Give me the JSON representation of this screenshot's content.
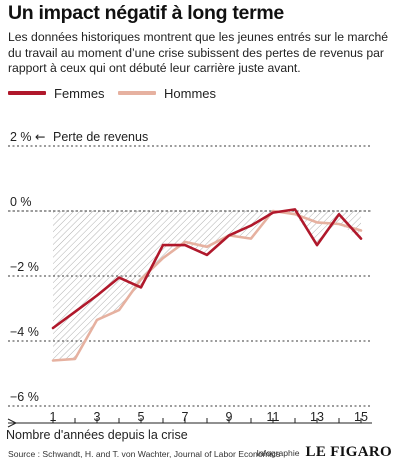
{
  "chart_data": {
    "type": "line",
    "title": "Un impact négatif à long terme",
    "subtitle": "Les données historiques montrent que les jeunes entrés sur le marché du travail au moment d’une crise subissent des pertes de revenus par rapport à ceux qui ont débuté leur carrière juste avant.",
    "xlabel": "Nombre d'années depuis la crise",
    "ylabel": "Perte de revenus",
    "ylabel_arrow": "←",
    "x": [
      1,
      2,
      3,
      4,
      5,
      6,
      7,
      8,
      9,
      10,
      11,
      12,
      13,
      14,
      15
    ],
    "x_ticks": [
      1,
      3,
      5,
      7,
      9,
      11,
      13,
      15
    ],
    "xlim": [
      0.5,
      15.5
    ],
    "ylim": [
      -6.4,
      2.4
    ],
    "y_ticks": [
      {
        "value": 2,
        "label": "2 %"
      },
      {
        "value": 0,
        "label": "0 %"
      },
      {
        "value": -2,
        "label": "−2 %"
      },
      {
        "value": -4,
        "label": "−4 %"
      },
      {
        "value": -6,
        "label": "−6 %"
      }
    ],
    "series": [
      {
        "name": "Femmes",
        "color": "#b0182b",
        "values": [
          -3.6,
          -3.1,
          -2.6,
          -2.05,
          -2.35,
          -1.05,
          -1.05,
          -1.35,
          -0.75,
          -0.45,
          -0.05,
          0.05,
          -1.05,
          -0.1,
          -0.85
        ]
      },
      {
        "name": "Hommes",
        "color": "#e6b1a0",
        "values": [
          -4.6,
          -4.55,
          -3.35,
          -3.05,
          -2.1,
          -1.45,
          -0.95,
          -1.1,
          -0.75,
          -0.85,
          0.0,
          -0.1,
          -0.35,
          -0.4,
          -0.6
        ]
      }
    ],
    "grid": false,
    "shaded_area": "hatched",
    "legend_position": "top-left"
  },
  "footer": {
    "source": "Source : Schwandt, H. and T. von Wachter, Journal of Labor Economics",
    "credit_label": "Infographie",
    "brand": "LE FIGARO"
  }
}
